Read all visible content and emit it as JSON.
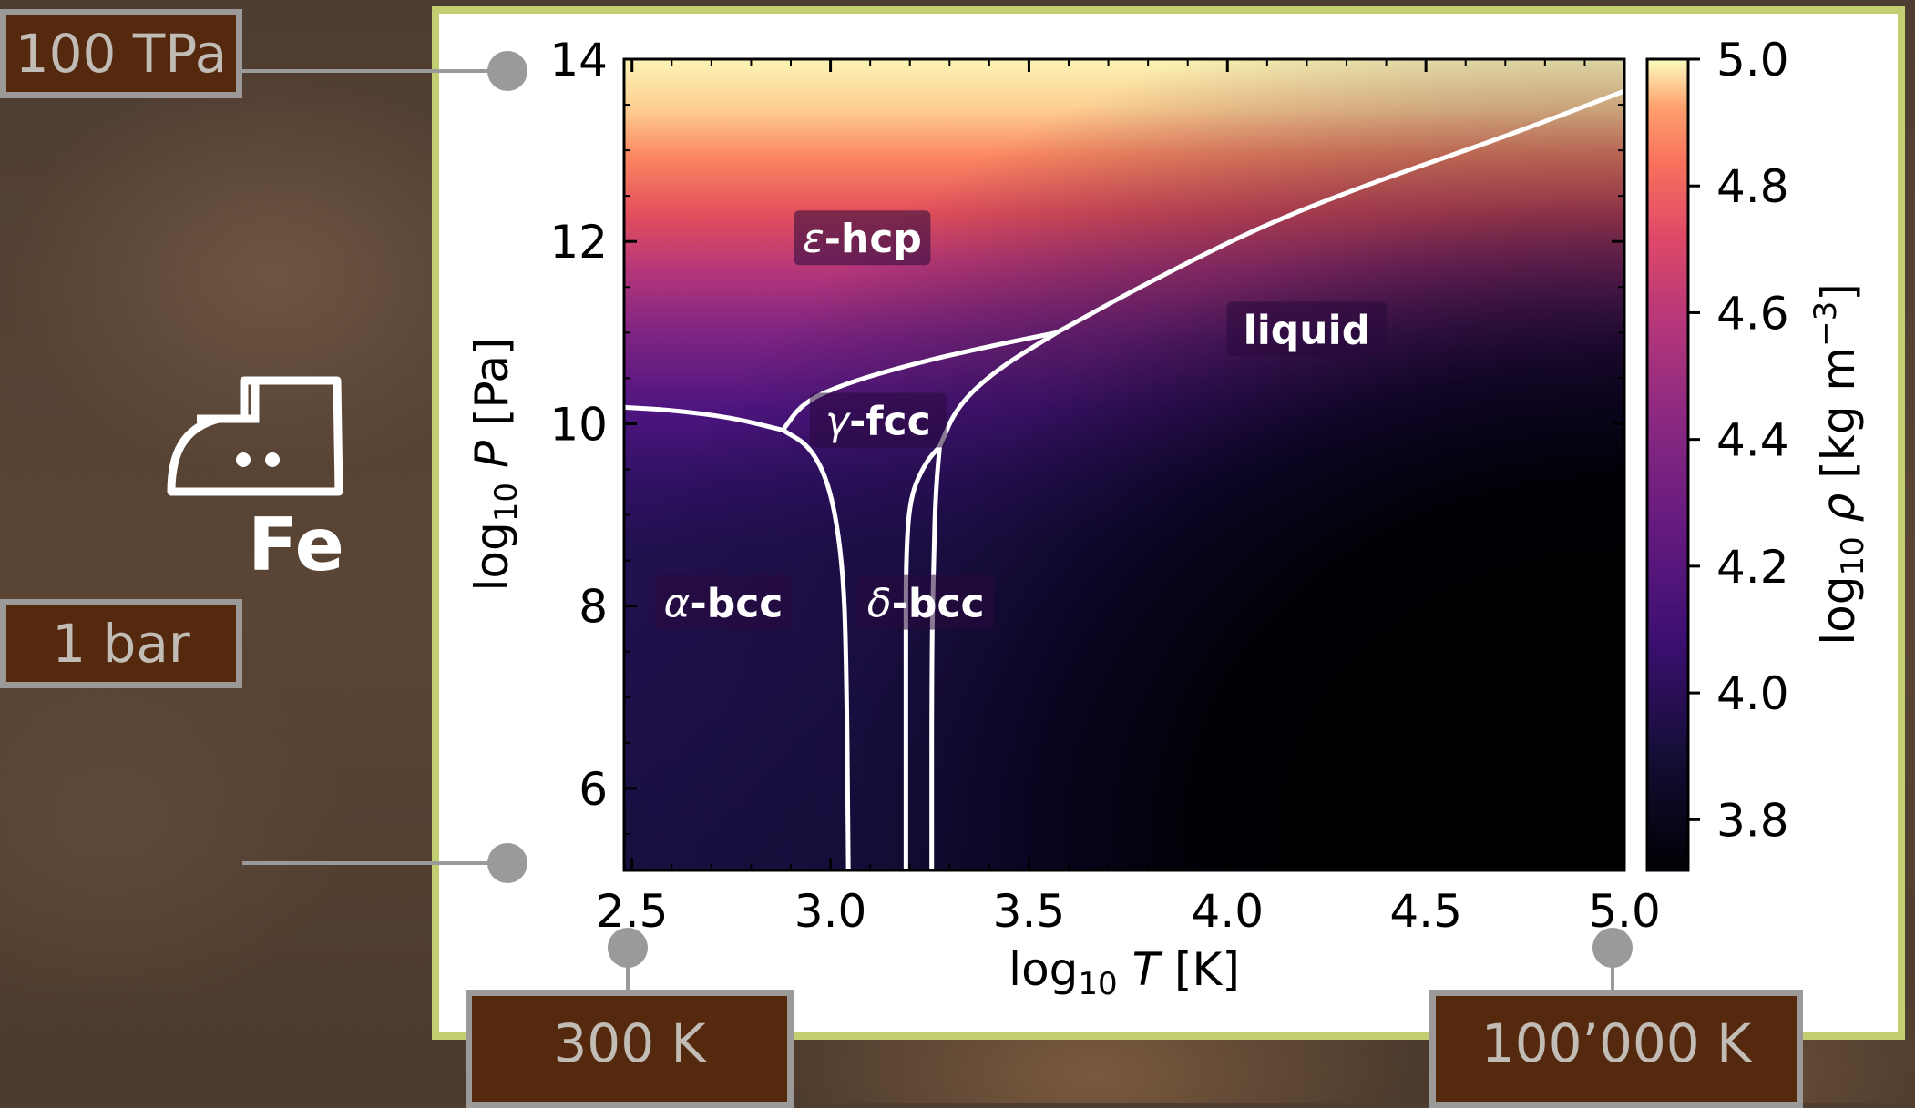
{
  "element": {
    "symbol": "Fe",
    "icon": "iron-icon"
  },
  "range_tags": {
    "p_max": "100 TPa",
    "p_min": "1 bar",
    "t_min": "300 K",
    "t_max": "100’000 K"
  },
  "colors": {
    "panel_border": "#c3cd72",
    "tag_fill": "#55290e",
    "tag_border": "#9c9a98",
    "connector": "#9a9a9a",
    "boundary_line": "#ffffff"
  },
  "chart_data": {
    "type": "heatmap",
    "colormap": "magma",
    "xlabel": "log10 T [K]",
    "ylabel": "log10 P [Pa]",
    "colorbar_label": "log10 ρ [kg m⁻³]",
    "xlim": [
      2.48,
      5.0
    ],
    "ylim": [
      5.1,
      14.0
    ],
    "xticks": [
      "2.5",
      "3.0",
      "3.5",
      "4.0",
      "4.5",
      "5.0"
    ],
    "yticks": [
      "6",
      "8",
      "10",
      "12",
      "14"
    ],
    "colorbar_range": [
      3.72,
      5.0
    ],
    "colorbar_ticks": [
      "3.8",
      "4.0",
      "4.2",
      "4.4",
      "4.6",
      "4.8",
      "5.0"
    ],
    "phase_labels": [
      {
        "text": "ε-hcp",
        "x": 3.08,
        "y": 12.0
      },
      {
        "text": "liquid",
        "x": 4.2,
        "y": 11.0
      },
      {
        "text": "γ-fcc",
        "x": 3.12,
        "y": 10.0
      },
      {
        "text": "α-bcc",
        "x": 2.73,
        "y": 8.0
      },
      {
        "text": "δ-bcc",
        "x": 3.24,
        "y": 8.0
      }
    ],
    "boundaries": [
      {
        "name": "alpha-epsilon",
        "points": [
          [
            2.48,
            10.18
          ],
          [
            2.6,
            10.15
          ],
          [
            2.75,
            10.07
          ],
          [
            2.88,
            9.93
          ]
        ]
      },
      {
        "name": "alpha-gamma",
        "points": [
          [
            2.88,
            9.93
          ],
          [
            2.95,
            9.75
          ],
          [
            3.0,
            9.3
          ],
          [
            3.03,
            8.5
          ],
          [
            3.04,
            7.5
          ],
          [
            3.045,
            5.1
          ]
        ]
      },
      {
        "name": "gamma-epsilon",
        "points": [
          [
            2.88,
            9.93
          ],
          [
            2.93,
            10.23
          ],
          [
            3.03,
            10.43
          ],
          [
            3.2,
            10.65
          ],
          [
            3.4,
            10.85
          ],
          [
            3.57,
            11.0
          ]
        ]
      },
      {
        "name": "gamma-delta",
        "points": [
          [
            3.19,
            5.1
          ],
          [
            3.19,
            7.5
          ],
          [
            3.19,
            8.5
          ],
          [
            3.2,
            9.2
          ],
          [
            3.24,
            9.58
          ],
          [
            3.275,
            9.75
          ]
        ]
      },
      {
        "name": "delta-liquid",
        "points": [
          [
            3.255,
            5.1
          ],
          [
            3.255,
            7.5
          ],
          [
            3.26,
            8.5
          ],
          [
            3.265,
            9.25
          ],
          [
            3.275,
            9.75
          ]
        ]
      },
      {
        "name": "gamma-liquid",
        "points": [
          [
            3.275,
            9.75
          ],
          [
            3.32,
            10.2
          ],
          [
            3.42,
            10.6
          ],
          [
            3.57,
            11.0
          ]
        ]
      },
      {
        "name": "epsilon-liquid",
        "points": [
          [
            3.57,
            11.0
          ],
          [
            3.8,
            11.55
          ],
          [
            4.1,
            12.2
          ],
          [
            4.4,
            12.7
          ],
          [
            4.7,
            13.15
          ],
          [
            5.0,
            13.65
          ]
        ]
      }
    ]
  }
}
